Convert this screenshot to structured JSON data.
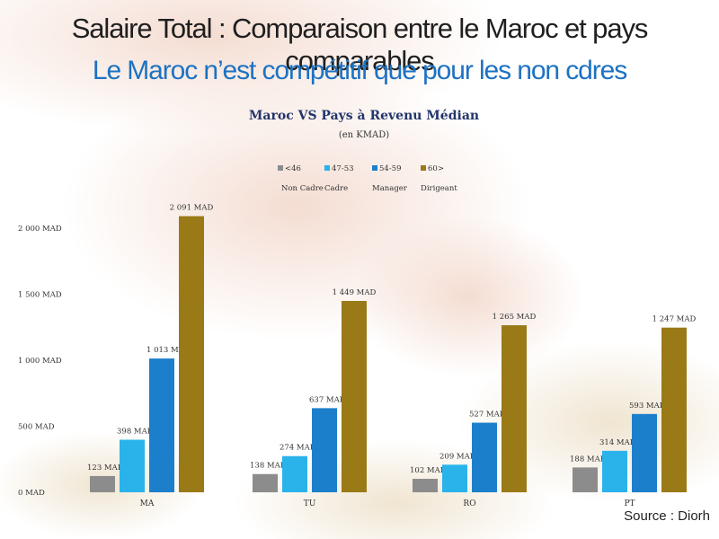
{
  "header": {
    "title": "Salaire Total : Comparaison entre le Maroc et pays comparables",
    "subtitle": "Le Maroc n’est compétitif que pour les non cdres"
  },
  "footer": {
    "source": "Source : Diorh"
  },
  "chart_data": {
    "type": "bar",
    "title": "Maroc VS Pays à Revenu Médian",
    "subtitle": "(en KMAD)",
    "categories": [
      "MA",
      "TU",
      "RO",
      "PT"
    ],
    "series": [
      {
        "name": "<46",
        "sublabel": "Non Cadre",
        "color": "#8c8c8c",
        "values": [
          123,
          138,
          102,
          188
        ],
        "labels": [
          "123 MAD",
          "138 MAD",
          "102 MAD",
          "188 MAD"
        ]
      },
      {
        "name": "47-53",
        "sublabel": "Cadre",
        "color": "#29b3ea",
        "values": [
          398,
          274,
          209,
          314
        ],
        "labels": [
          "398 MAD",
          "274 MAD",
          "209 MAD",
          "314 MAD"
        ]
      },
      {
        "name": "54-59",
        "sublabel": "Manager",
        "color": "#1c7fcb",
        "values": [
          1013,
          637,
          527,
          593
        ],
        "labels": [
          "1 013 MAD",
          "637 MAD",
          "527 MAD",
          "593 MAD"
        ]
      },
      {
        "name": "60>",
        "sublabel": "Dirigeant",
        "color": "#9a7a16",
        "values": [
          2091,
          1449,
          1265,
          1247
        ],
        "labels": [
          "2 091 MAD",
          "1 449 MAD",
          "1 265 MAD",
          "1 247 MAD"
        ]
      }
    ],
    "yticks": [
      {
        "value": 0,
        "label": "0 MAD"
      },
      {
        "value": 500,
        "label": "500 MAD"
      },
      {
        "value": 1000,
        "label": "1 000 MAD"
      },
      {
        "value": 1500,
        "label": "1 500 MAD"
      },
      {
        "value": 2000,
        "label": "2 000 MAD"
      }
    ],
    "ylim": [
      0,
      2200
    ],
    "grid": false,
    "legend_position": "top-center"
  }
}
